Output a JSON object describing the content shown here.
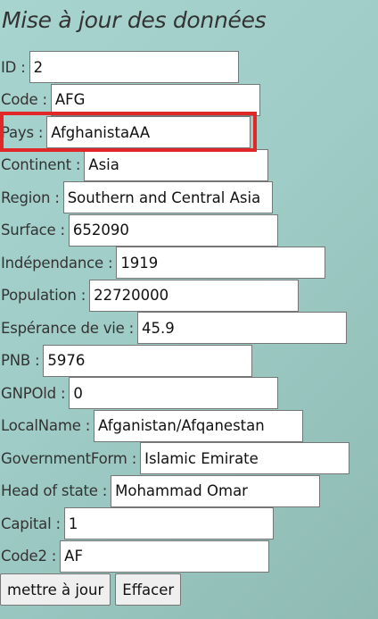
{
  "title": "Mise à jour des données",
  "fields": [
    {
      "label": "ID :",
      "value": "2"
    },
    {
      "label": "Code :",
      "value": "AFG"
    },
    {
      "label": "Pays :",
      "value": "AfghanistaAA"
    },
    {
      "label": "Continent :",
      "value": "Asia"
    },
    {
      "label": "Region :",
      "value": "Southern and Central Asia"
    },
    {
      "label": "Surface :",
      "value": "652090"
    },
    {
      "label": "Indépendance :",
      "value": "1919"
    },
    {
      "label": "Population :",
      "value": "22720000"
    },
    {
      "label": "Espérance de vie :",
      "value": "45.9"
    },
    {
      "label": "PNB :",
      "value": "5976"
    },
    {
      "label": "GNPOld :",
      "value": "0"
    },
    {
      "label": "LocalName :",
      "value": "Afganistan/Afqanestan"
    },
    {
      "label": "GovernmentForm :",
      "value": "Islamic Emirate"
    },
    {
      "label": "Head of state :",
      "value": "Mohammad Omar"
    },
    {
      "label": "Capital :",
      "value": "1"
    },
    {
      "label": "Code2 :",
      "value": "AF"
    }
  ],
  "buttons": {
    "submit": "mettre à jour",
    "reset": "Effacer"
  },
  "colors": {
    "highlight": "#e02828",
    "background": "#9fccc6"
  }
}
